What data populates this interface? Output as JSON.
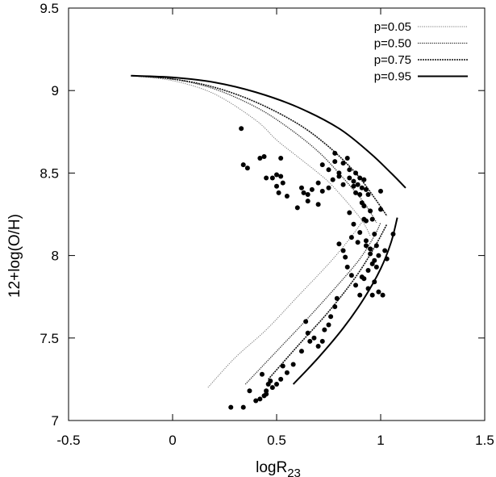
{
  "chart_data": {
    "type": "scatter",
    "xlabel": "logR",
    "xlabel_sub": "23",
    "ylabel": "12+log(O/H)",
    "xlim": [
      -0.5,
      1.5
    ],
    "ylim": [
      7.0,
      9.5
    ],
    "xticks": [
      "-0.5",
      "0",
      "0.5",
      "1",
      "1.5"
    ],
    "yticks": [
      "7",
      "7.5",
      "8",
      "8.5",
      "9",
      "9.5"
    ],
    "grid": false,
    "legend": "top-right",
    "series": [
      {
        "name": "p=0.05",
        "kind": "line",
        "style": "dotted-thin",
        "x": [
          -0.2,
          0.0,
          0.2,
          0.4,
          0.5,
          0.6,
          0.7,
          0.77,
          0.9,
          0.95
        ],
        "y": [
          9.09,
          9.06,
          8.98,
          8.82,
          8.7,
          8.6,
          8.5,
          8.42,
          8.23,
          8.12
        ],
        "lower_x": [
          0.17,
          0.3,
          0.45,
          0.6,
          0.75,
          0.85,
          0.92
        ],
        "lower_y": [
          7.2,
          7.38,
          7.55,
          7.75,
          7.95,
          8.1,
          8.22
        ]
      },
      {
        "name": "p=0.50",
        "kind": "line",
        "style": "dotted",
        "x": [
          -0.2,
          0.0,
          0.2,
          0.4,
          0.55,
          0.7,
          0.82,
          0.92,
          0.98
        ],
        "y": [
          9.09,
          9.07,
          9.01,
          8.9,
          8.78,
          8.63,
          8.47,
          8.32,
          8.2
        ],
        "lower_x": [
          0.35,
          0.5,
          0.65,
          0.8,
          0.9,
          0.97,
          1.0
        ],
        "lower_y": [
          7.22,
          7.42,
          7.62,
          7.83,
          7.98,
          8.12,
          8.2
        ]
      },
      {
        "name": "p=0.75",
        "kind": "line",
        "style": "dashed-dotted",
        "x": [
          -0.2,
          0.0,
          0.2,
          0.4,
          0.6,
          0.75,
          0.88,
          0.97,
          1.03
        ],
        "y": [
          9.09,
          9.07,
          9.02,
          8.93,
          8.8,
          8.66,
          8.5,
          8.35,
          8.24
        ],
        "lower_x": [
          0.46,
          0.6,
          0.75,
          0.88,
          0.97,
          1.03
        ],
        "lower_y": [
          7.25,
          7.45,
          7.66,
          7.87,
          8.05,
          8.19
        ]
      },
      {
        "name": "p=0.95",
        "kind": "line",
        "style": "solid",
        "x": [
          -0.2,
          0.0,
          0.2,
          0.4,
          0.6,
          0.8,
          0.95,
          1.05,
          1.12
        ],
        "y": [
          9.09,
          9.08,
          9.05,
          8.99,
          8.9,
          8.77,
          8.62,
          8.5,
          8.41
        ],
        "lower_x": [
          0.58,
          0.7,
          0.82,
          0.92,
          1.0,
          1.05,
          1.08
        ],
        "lower_y": [
          7.22,
          7.38,
          7.56,
          7.74,
          7.92,
          8.08,
          8.23
        ]
      },
      {
        "kind": "points",
        "x": [
          0.33,
          0.34,
          0.36,
          0.42,
          0.44,
          0.45,
          0.48,
          0.5,
          0.5,
          0.51,
          0.52,
          0.52,
          0.53,
          0.55,
          0.6,
          0.62,
          0.63,
          0.65,
          0.65,
          0.67,
          0.7,
          0.7,
          0.72,
          0.72,
          0.75,
          0.75,
          0.77,
          0.78,
          0.78,
          0.8,
          0.8,
          0.82,
          0.82,
          0.84,
          0.85,
          0.85,
          0.87,
          0.87,
          0.88,
          0.88,
          0.89,
          0.9,
          0.9,
          0.91,
          0.91,
          0.92,
          0.92,
          0.93,
          0.93,
          0.94,
          0.95,
          0.96,
          0.97,
          0.98,
          0.99,
          1.0,
          1.0,
          1.02,
          1.03,
          0.9,
          0.88,
          0.86,
          0.84,
          0.83,
          0.82,
          0.8,
          0.79,
          0.78,
          0.76,
          0.75,
          0.73,
          0.72,
          0.7,
          0.68,
          0.66,
          0.65,
          0.64,
          0.62,
          0.58,
          0.55,
          0.53,
          0.52,
          0.5,
          0.48,
          0.46,
          0.45,
          0.44,
          0.43,
          0.42,
          0.4,
          0.37,
          0.34,
          0.28,
          0.45,
          0.47,
          0.9,
          0.92,
          0.93,
          0.95,
          0.96,
          0.94,
          0.91,
          0.97,
          0.99,
          1.01,
          1.06,
          0.87,
          0.85,
          0.86,
          0.89,
          0.93,
          0.95,
          0.97,
          0.98,
          0.92,
          0.94,
          0.96
        ],
        "y": [
          8.77,
          8.55,
          8.53,
          8.59,
          8.6,
          8.47,
          8.47,
          8.49,
          8.42,
          8.38,
          8.48,
          8.59,
          8.44,
          8.36,
          8.29,
          8.41,
          8.38,
          8.33,
          8.37,
          8.4,
          8.44,
          8.31,
          8.39,
          8.55,
          8.52,
          8.41,
          8.46,
          8.62,
          8.57,
          8.5,
          8.48,
          8.43,
          8.56,
          8.59,
          8.47,
          8.52,
          8.42,
          8.45,
          8.5,
          8.38,
          8.43,
          8.47,
          8.37,
          8.41,
          8.32,
          8.46,
          8.3,
          8.4,
          8.21,
          8.37,
          8.27,
          8.22,
          8.13,
          8.06,
          8.0,
          8.39,
          8.28,
          8.03,
          7.98,
          7.76,
          7.82,
          7.88,
          7.93,
          7.99,
          8.03,
          8.07,
          7.74,
          7.69,
          7.63,
          7.58,
          7.55,
          7.48,
          7.45,
          7.5,
          7.48,
          7.53,
          7.6,
          7.42,
          7.34,
          7.29,
          7.33,
          7.25,
          7.22,
          7.2,
          7.22,
          7.18,
          7.15,
          7.28,
          7.13,
          7.12,
          7.18,
          7.08,
          7.08,
          7.16,
          7.24,
          8.14,
          8.22,
          8.09,
          8.01,
          7.95,
          7.91,
          7.87,
          7.84,
          7.78,
          7.76,
          8.13,
          8.19,
          8.26,
          8.11,
          8.08,
          8.06,
          8.04,
          7.97,
          7.93,
          7.86,
          7.8,
          7.76
        ]
      }
    ]
  }
}
